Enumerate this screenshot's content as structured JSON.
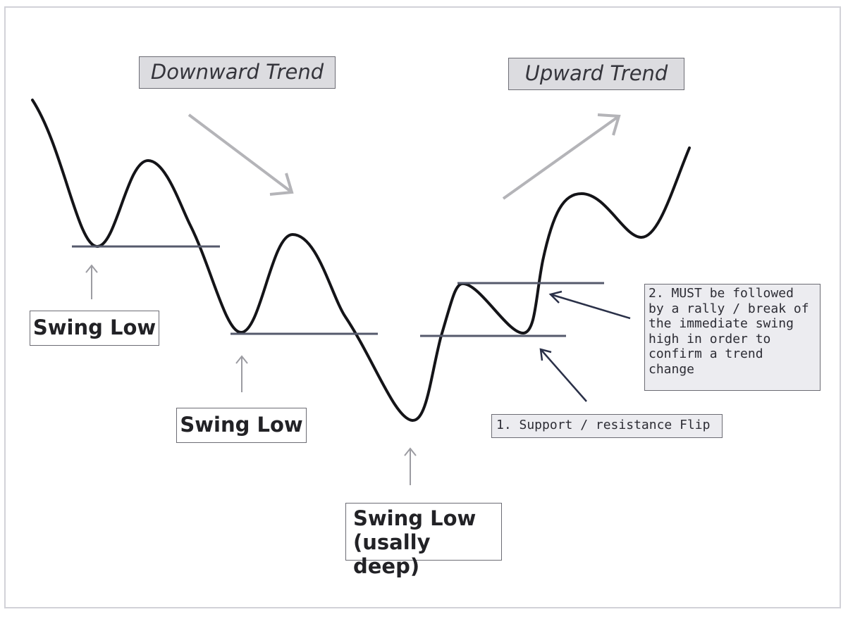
{
  "colors": {
    "price_line": "#141418",
    "level_line": "#555a6c",
    "trend_arrow": "#b4b4b8",
    "pointer_arrow": "#9c9ca2",
    "note_arrow": "#2a3048",
    "label_fill": "#dcdce0",
    "note_fill": "#ececf0"
  },
  "labels": {
    "downward_trend": "Downward Trend",
    "upward_trend": "Upward Trend",
    "swing_low_1": "Swing Low",
    "swing_low_2": "Swing Low",
    "swing_low_3_line1": "Swing Low",
    "swing_low_3_line2": "(usally deep)",
    "note_flip": "1. Support / resistance Flip",
    "note_confirm_lines": [
      "2. MUST be followed",
      "by a rally / break of",
      "the immediate swing",
      "high in order to",
      "confirm a trend",
      "change"
    ]
  },
  "icons": {
    "downward_trend_arrow": "diagonal-arrow-down-right-icon",
    "upward_trend_arrow": "diagonal-arrow-up-right-icon",
    "swing_pointer": "arrow-up-icon",
    "note_pointer": "arrow-up-left-icon"
  }
}
